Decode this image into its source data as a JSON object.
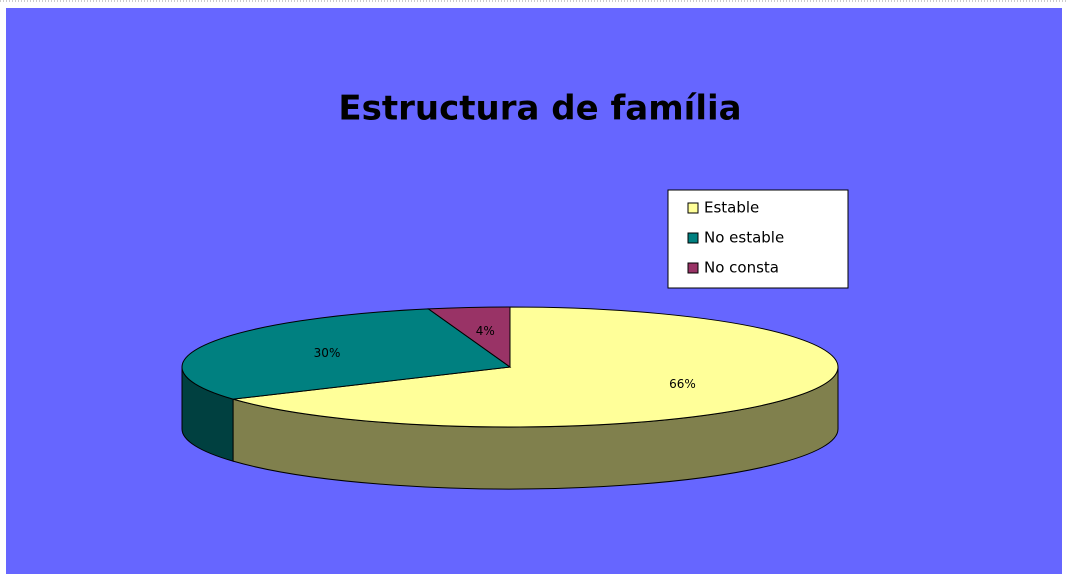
{
  "chart_data": {
    "type": "pie",
    "title": "Estructura de família",
    "categories": [
      "Estable",
      "No estable",
      "No consta"
    ],
    "values": [
      66,
      30,
      4
    ],
    "value_labels": [
      "66%",
      "30%",
      "4%"
    ],
    "colors": [
      "#ffff99",
      "#008080",
      "#993366"
    ],
    "background": "#6666ff",
    "legend": "upper right"
  }
}
